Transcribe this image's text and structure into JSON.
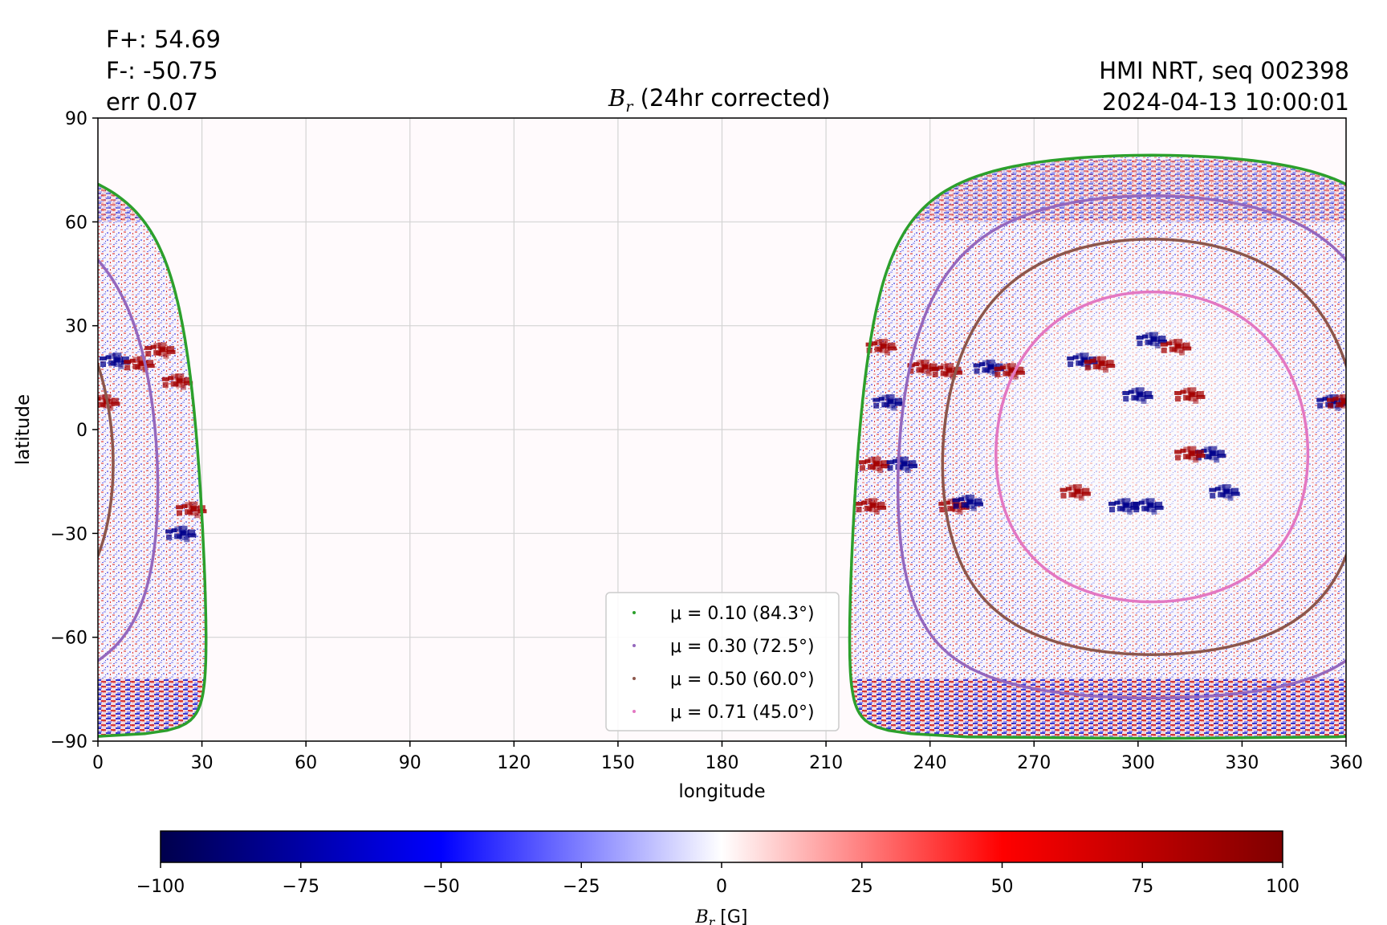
{
  "header": {
    "flux_pos": "F+: 54.69",
    "flux_neg": "F-: -50.75",
    "err": "err 0.07",
    "title_symbol": "B",
    "title_sub": "r",
    "title_rest": " (24hr corrected)",
    "source": "HMI NRT, seq 002398",
    "timestamp": "2024-04-13 10:00:01"
  },
  "chart_data": {
    "type": "heatmap",
    "xlabel": "longitude",
    "ylabel": "latitude",
    "xlim": [
      0,
      360
    ],
    "ylim": [
      -90,
      90
    ],
    "xticks": [
      0,
      30,
      60,
      90,
      120,
      150,
      180,
      210,
      240,
      270,
      300,
      330,
      360
    ],
    "yticks": [
      90,
      60,
      30,
      0,
      -30,
      -60,
      -90
    ],
    "grid": true,
    "disk_center": {
      "lon": 304,
      "lat": -5
    },
    "contours": [
      {
        "label": "μ = 0.10 (84.3°)",
        "mu": 0.1,
        "angle_deg": 84.3,
        "color": "#2ca02c"
      },
      {
        "label": "μ = 0.30 (72.5°)",
        "mu": 0.3,
        "angle_deg": 72.5,
        "color": "#9467bd"
      },
      {
        "label": "μ = 0.50 (60.0°)",
        "mu": 0.5,
        "angle_deg": 60.0,
        "color": "#8c564b"
      },
      {
        "label": "μ = 0.71 (45.0°)",
        "mu": 0.71,
        "angle_deg": 45.0,
        "color": "#e377c2"
      }
    ],
    "legend_placement": "lower-center",
    "colorbar": {
      "cmap": "seismic",
      "range": [
        -100,
        100
      ],
      "ticks": [
        -100,
        -75,
        -50,
        -25,
        0,
        25,
        50,
        75,
        100
      ],
      "label_symbol": "B",
      "label_sub": "r",
      "label_unit": " [G]"
    },
    "active_regions": [
      {
        "lon": 304,
        "lat": 26,
        "polarity": "neg"
      },
      {
        "lon": 311,
        "lat": 24,
        "polarity": "pos"
      },
      {
        "lon": 284,
        "lat": 20,
        "polarity": "neg"
      },
      {
        "lon": 289,
        "lat": 19,
        "polarity": "pos"
      },
      {
        "lon": 257,
        "lat": 18,
        "polarity": "neg"
      },
      {
        "lon": 263,
        "lat": 17,
        "polarity": "pos"
      },
      {
        "lon": 315,
        "lat": 10,
        "polarity": "pos"
      },
      {
        "lon": 300,
        "lat": 10,
        "polarity": "neg"
      },
      {
        "lon": 321,
        "lat": -7,
        "polarity": "neg"
      },
      {
        "lon": 315,
        "lat": -7,
        "polarity": "pos"
      },
      {
        "lon": 296,
        "lat": -22,
        "polarity": "neg"
      },
      {
        "lon": 303,
        "lat": -22,
        "polarity": "neg"
      },
      {
        "lon": 282,
        "lat": -18,
        "polarity": "pos"
      },
      {
        "lon": 325,
        "lat": -18,
        "polarity": "neg"
      },
      {
        "lon": 247,
        "lat": -22,
        "polarity": "pos"
      },
      {
        "lon": 251,
        "lat": -21,
        "polarity": "neg"
      },
      {
        "lon": 238,
        "lat": 18,
        "polarity": "pos"
      },
      {
        "lon": 245,
        "lat": 17,
        "polarity": "pos"
      },
      {
        "lon": 226,
        "lat": 24,
        "polarity": "pos"
      },
      {
        "lon": 228,
        "lat": 8,
        "polarity": "neg"
      },
      {
        "lon": 224,
        "lat": -10,
        "polarity": "pos"
      },
      {
        "lon": 232,
        "lat": -10,
        "polarity": "neg"
      },
      {
        "lon": 223,
        "lat": -22,
        "polarity": "pos"
      },
      {
        "lon": 356,
        "lat": 8,
        "polarity": "neg"
      },
      {
        "lon": 359,
        "lat": 8,
        "polarity": "pos"
      },
      {
        "lon": 18,
        "lat": 23,
        "polarity": "pos"
      },
      {
        "lon": 23,
        "lat": 14,
        "polarity": "pos"
      },
      {
        "lon": 5,
        "lat": 20,
        "polarity": "neg"
      },
      {
        "lon": 12,
        "lat": 19,
        "polarity": "pos"
      },
      {
        "lon": 2,
        "lat": 8,
        "polarity": "pos"
      },
      {
        "lon": 27,
        "lat": -23,
        "polarity": "pos"
      },
      {
        "lon": 24,
        "lat": -30,
        "polarity": "neg"
      }
    ]
  }
}
